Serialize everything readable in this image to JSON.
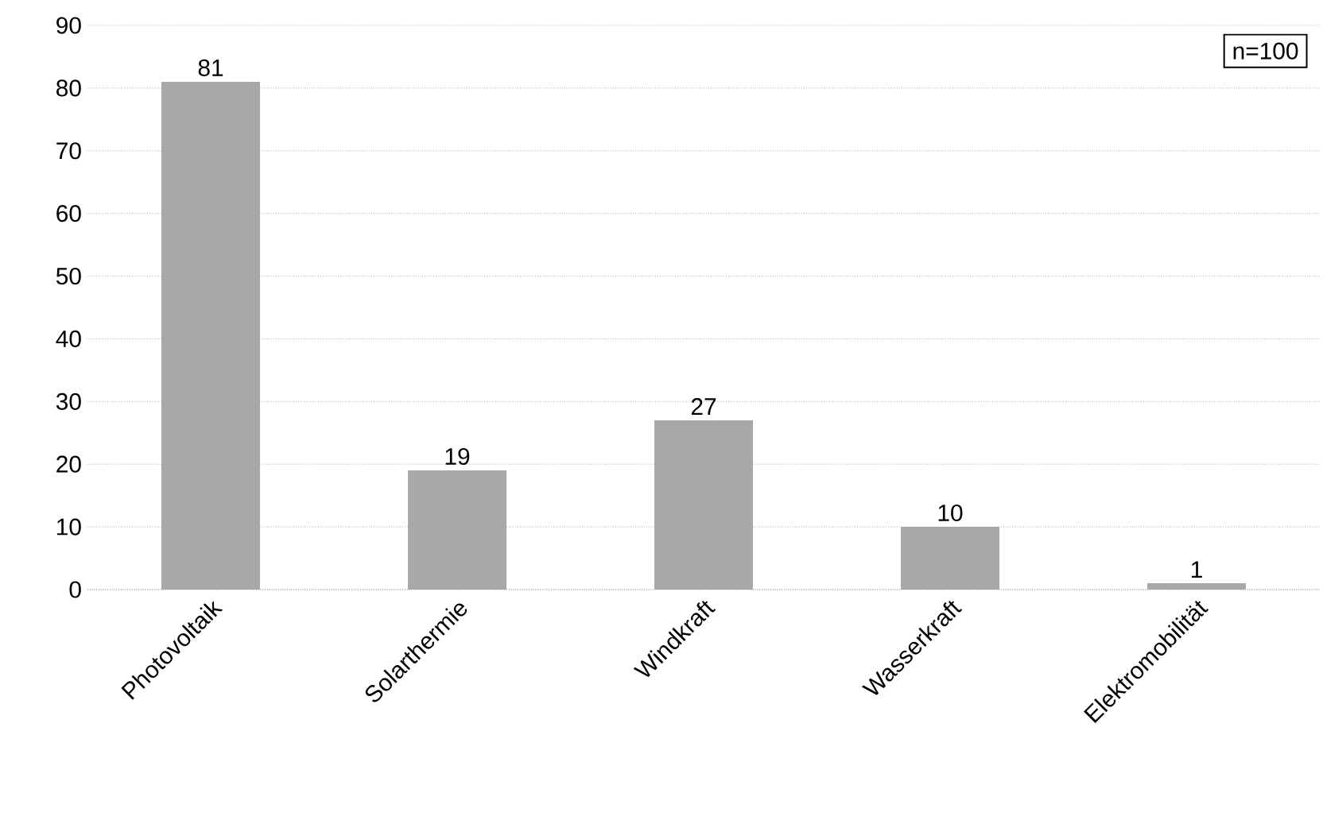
{
  "chart_data": {
    "type": "bar",
    "categories": [
      "Photovoltaik",
      "Solarthermie",
      "Windkraft",
      "Wasserkraft",
      "Elektromobilität"
    ],
    "values": [
      81,
      19,
      27,
      10,
      1
    ],
    "color": "#a8a8a8",
    "ylim": [
      0,
      90
    ],
    "yticks": [
      0,
      10,
      20,
      30,
      40,
      50,
      60,
      70,
      80,
      90
    ],
    "grid": "y",
    "data_labels": true,
    "annotations": [
      "n=100"
    ]
  }
}
